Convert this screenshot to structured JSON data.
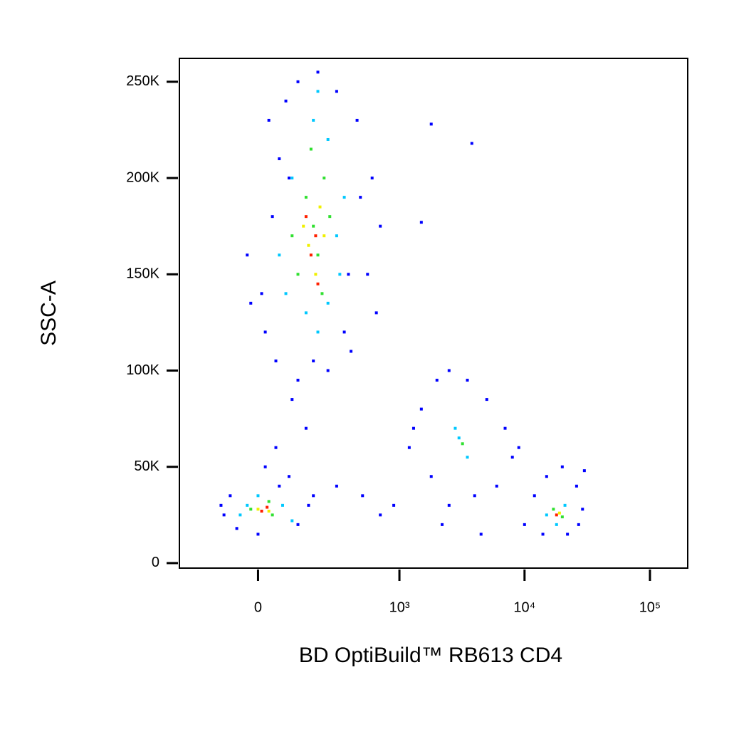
{
  "chart_data": {
    "type": "scatter",
    "xlabel": "BD OptiBuild™ RB613 CD4",
    "ylabel": "SSC-A",
    "xscale": "biexponential",
    "xlim": [
      -300,
      200000
    ],
    "ylim": [
      -2600,
      262143
    ],
    "xticks": [
      0,
      {
        "value": 1000,
        "label": "10³"
      },
      {
        "value": 10000,
        "label": "10⁴"
      },
      {
        "value": 100000,
        "label": "10⁵"
      }
    ],
    "yticks": [
      0,
      {
        "value": 50000,
        "label": "50K"
      },
      {
        "value": 100000,
        "label": "100K"
      },
      {
        "value": 150000,
        "label": "150K"
      },
      {
        "value": 200000,
        "label": "200K"
      },
      {
        "value": 250000,
        "label": "250K"
      }
    ],
    "series": [
      {
        "color": "#0000ff",
        "x": [
          20,
          40,
          60,
          80,
          120,
          200,
          300,
          450,
          600,
          700,
          550,
          650,
          400,
          250,
          120,
          50,
          10,
          -30,
          30,
          350,
          180,
          90,
          480,
          -20,
          380,
          50,
          150,
          300,
          500,
          700,
          900,
          100,
          20,
          -100,
          -80,
          -60,
          0,
          60,
          120,
          160,
          180,
          -110,
          90,
          1200,
          1500,
          2000,
          2500,
          3500,
          5000,
          7000,
          8000,
          6000,
          4000,
          2500,
          1800,
          1300,
          2200,
          4500,
          9000,
          10000,
          12000,
          15000,
          20000,
          26000,
          29000,
          27000,
          14000,
          22000,
          30000,
          1800,
          3800,
          1500
        ],
        "values": [
          120000,
          180000,
          210000,
          240000,
          250000,
          255000,
          245000,
          230000,
          200000,
          175000,
          150000,
          130000,
          110000,
          100000,
          95000,
          105000,
          140000,
          160000,
          230000,
          120000,
          105000,
          200000,
          190000,
          135000,
          150000,
          60000,
          70000,
          40000,
          35000,
          25000,
          30000,
          85000,
          50000,
          25000,
          35000,
          18000,
          15000,
          40000,
          20000,
          30000,
          35000,
          30000,
          45000,
          60000,
          80000,
          95000,
          100000,
          95000,
          85000,
          70000,
          55000,
          40000,
          35000,
          30000,
          45000,
          70000,
          20000,
          15000,
          60000,
          20000,
          35000,
          45000,
          50000,
          40000,
          28000,
          20000,
          15000,
          15000,
          48000,
          228000,
          218000,
          177000
        ]
      },
      {
        "color": "#00c8ff",
        "x": [
          80,
          150,
          250,
          300,
          350,
          100,
          180,
          250,
          200,
          60,
          320,
          200,
          -50,
          0,
          70,
          100,
          -30,
          2800,
          3500,
          3000,
          15000,
          21000,
          18000
        ],
        "values": [
          140000,
          130000,
          135000,
          170000,
          190000,
          200000,
          230000,
          220000,
          120000,
          160000,
          150000,
          245000,
          25000,
          35000,
          30000,
          22000,
          30000,
          70000,
          55000,
          65000,
          25000,
          30000,
          20000
        ]
      },
      {
        "color": "#30e030",
        "x": [
          120,
          200,
          150,
          230,
          180,
          260,
          100,
          220,
          170,
          -20,
          40,
          30,
          3200,
          17000,
          20000
        ],
        "values": [
          150000,
          160000,
          190000,
          200000,
          175000,
          180000,
          170000,
          140000,
          215000,
          28000,
          25000,
          32000,
          62000,
          28000,
          24000
        ]
      },
      {
        "color": "#f0f000",
        "x": [
          160,
          210,
          140,
          190,
          230,
          0,
          30,
          19000
        ],
        "values": [
          165000,
          185000,
          175000,
          150000,
          170000,
          28000,
          27000,
          26000
        ]
      },
      {
        "color": "#ff2000",
        "x": [
          170,
          190,
          200,
          150,
          10,
          18000,
          25
        ],
        "values": [
          160000,
          170000,
          145000,
          180000,
          27000,
          25000,
          29000
        ]
      }
    ]
  }
}
